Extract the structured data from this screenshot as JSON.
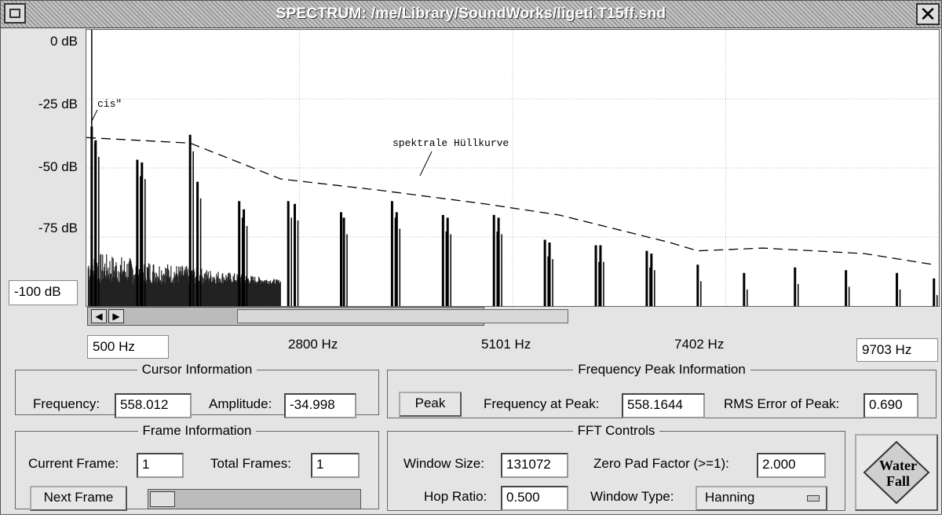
{
  "window": {
    "title": "SPECTRUM:  /me/Library/SoundWorks/ligeti.T15ff.snd",
    "close_glyph": "✕"
  },
  "y_axis": {
    "labels": [
      "0 dB",
      "-25 dB",
      "-50 dB",
      "-75 dB"
    ],
    "min_label": "-100 dB"
  },
  "x_axis": {
    "min_label": "500 Hz",
    "labels": [
      "2800 Hz",
      "5101 Hz",
      "7402 Hz"
    ],
    "max_label": "9703 Hz"
  },
  "annotations": {
    "note": "cis\"",
    "envelope": "spektrale Hüllkurve"
  },
  "chart_data": {
    "type": "line",
    "xlabel": "",
    "ylabel": "",
    "xlim": [
      500,
      9703
    ],
    "ylim": [
      -100,
      0
    ],
    "x_ticks": [
      500,
      2800,
      5101,
      7402,
      9703
    ],
    "y_ticks": [
      0,
      -25,
      -50,
      -75,
      -100
    ],
    "grid": true,
    "series": [
      {
        "name": "spektrale Hüllkurve",
        "style": "dashed",
        "x": [
          500,
          1620,
          2600,
          3650,
          4800,
          5600,
          6800,
          7100,
          7800,
          8900,
          9650
        ],
        "y": [
          -39,
          -41,
          -54,
          -58,
          -63,
          -67,
          -77,
          -80,
          -79,
          -81,
          -85
        ]
      }
    ],
    "peaks": {
      "x": [
        558,
        600,
        1050,
        1100,
        1620,
        1700,
        2150,
        2200,
        2680,
        2750,
        3250,
        3280,
        3800,
        3850,
        4350,
        4400,
        4900,
        4950,
        5450,
        5500,
        6000,
        6050,
        6550,
        6600,
        7100,
        7600,
        8150,
        8700,
        9250,
        9650
      ],
      "y": [
        -35,
        -40,
        -47,
        -48,
        -38,
        -55,
        -62,
        -65,
        -62,
        -63,
        -66,
        -68,
        -62,
        -66,
        -67,
        -68,
        -67,
        -68,
        -76,
        -77,
        -78,
        -78,
        -80,
        -81,
        -85,
        -88,
        -86,
        -87,
        -88,
        -90
      ]
    }
  },
  "cursor_info": {
    "legend": "Cursor Information",
    "frequency_label": "Frequency:",
    "frequency_value": "558.012",
    "amplitude_label": "Amplitude:",
    "amplitude_value": "-34.998"
  },
  "peak_info": {
    "legend": "Frequency Peak Information",
    "peak_button": "Peak",
    "freq_label": "Frequency at Peak:",
    "freq_value": "558.1644",
    "rms_label": "RMS Error of Peak:",
    "rms_value": "0.690"
  },
  "frame_info": {
    "legend": "Frame Information",
    "current_label": "Current Frame:",
    "current_value": "1",
    "total_label": "Total Frames:",
    "total_value": "1",
    "next_button": "Next Frame"
  },
  "fft": {
    "legend": "FFT Controls",
    "window_size_label": "Window Size:",
    "window_size_value": "131072",
    "zero_pad_label": "Zero Pad Factor (>=1):",
    "zero_pad_value": "2.000",
    "hop_label": "Hop Ratio:",
    "hop_value": "0.500",
    "window_type_label": "Window Type:",
    "window_type_value": "Hanning"
  },
  "waterfall": {
    "line1": "Water",
    "line2": "Fall"
  }
}
